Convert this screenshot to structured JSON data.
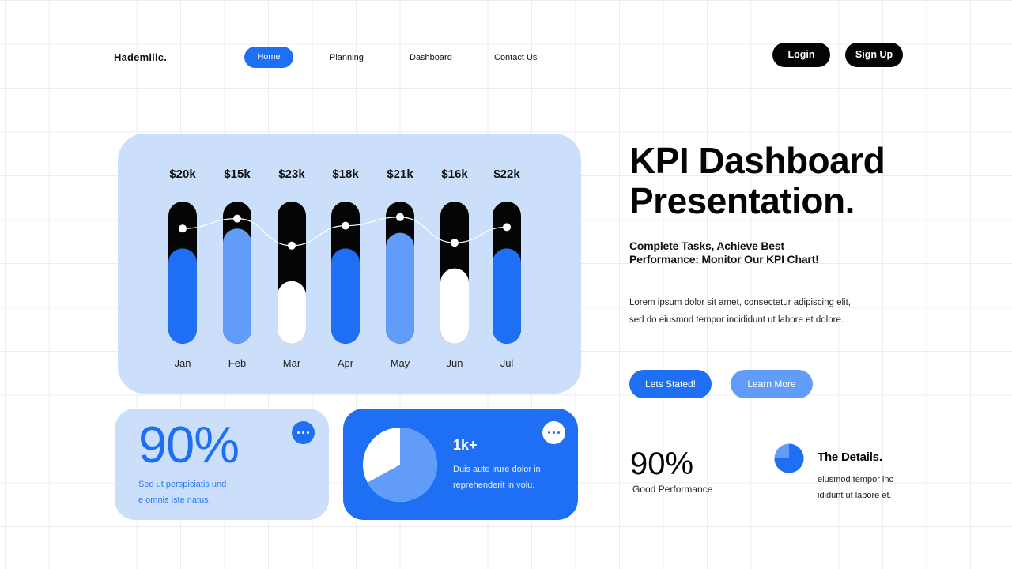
{
  "brand": "Hademilic.",
  "nav": {
    "items": [
      "Home",
      "Planning",
      "Dashboard",
      "Contact Us"
    ],
    "active": "Home"
  },
  "auth": {
    "login": "Login",
    "signup": "Sign Up"
  },
  "colors": {
    "primary": "#1f6ff5",
    "light_blue": "#619df8",
    "card_bg": "#cbdffb",
    "dark": "#050505"
  },
  "chart_data": {
    "type": "bar",
    "categories": [
      "Jan",
      "Feb",
      "Mar",
      "Apr",
      "May",
      "Jun",
      "Jul"
    ],
    "value_labels": [
      "$20k",
      "$15k",
      "$23k",
      "$18k",
      "$21k",
      "$16k",
      "$22k"
    ],
    "fill_fraction": [
      0.67,
      0.81,
      0.44,
      0.67,
      0.78,
      0.53,
      0.67
    ],
    "fill_colors": [
      "#1f6ff5",
      "#619df8",
      "#ffffff",
      "#1f6ff5",
      "#619df8",
      "#ffffff",
      "#1f6ff5"
    ],
    "trend_fraction": [
      0.81,
      0.88,
      0.69,
      0.83,
      0.89,
      0.71,
      0.82
    ]
  },
  "card_left": {
    "value": "90%",
    "desc_line1": "Sed ut perspiciatis und",
    "desc_line2": "e omnis iste natus.",
    "menu_icon": "more-dots-icon"
  },
  "card_mid": {
    "value": "1k+",
    "desc_line1": "Duis aute irure dolor in",
    "desc_line2": "reprehenderit in volu.",
    "pie_fraction": 0.67,
    "menu_icon": "more-dots-icon"
  },
  "hero": {
    "title_line1": "KPI Dashboard",
    "title_line2": "Presentation.",
    "subtitle_line1": "Complete Tasks, Achieve Best",
    "subtitle_line2": "Performance: Monitor Our KPI Chart!",
    "body_line1": "Lorem ipsum dolor sit amet, consectetur adipiscing elit,",
    "body_line2": "sed do eiusmod tempor incididunt ut labore et dolore.",
    "primary_button": "Lets Stated!",
    "secondary_button": "Learn More"
  },
  "stats": {
    "value": "90%",
    "label": "Good Performance",
    "pie_fraction": 0.75
  },
  "details": {
    "title": "The Details.",
    "body_line1": "eiusmod tempor inc",
    "body_line2": "ididunt ut labore et."
  }
}
